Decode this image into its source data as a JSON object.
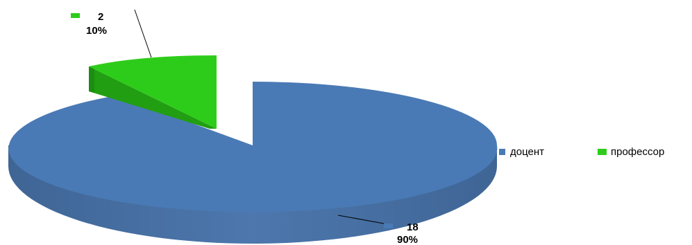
{
  "chart_data": {
    "type": "pie",
    "style": "3d-exploded",
    "categories": [
      "доцент",
      "профессор"
    ],
    "values": [
      18,
      2
    ],
    "percents": [
      "90%",
      "10%"
    ],
    "data_labels": [
      {
        "value": "18",
        "percent": "90%"
      },
      {
        "value": "2",
        "percent": "10%"
      }
    ],
    "colors": {
      "доцент": "#4a7ab5",
      "профессор": "#2ecc1a"
    },
    "legend": {
      "position": "right",
      "items": [
        "доцент",
        "профессор"
      ]
    }
  }
}
